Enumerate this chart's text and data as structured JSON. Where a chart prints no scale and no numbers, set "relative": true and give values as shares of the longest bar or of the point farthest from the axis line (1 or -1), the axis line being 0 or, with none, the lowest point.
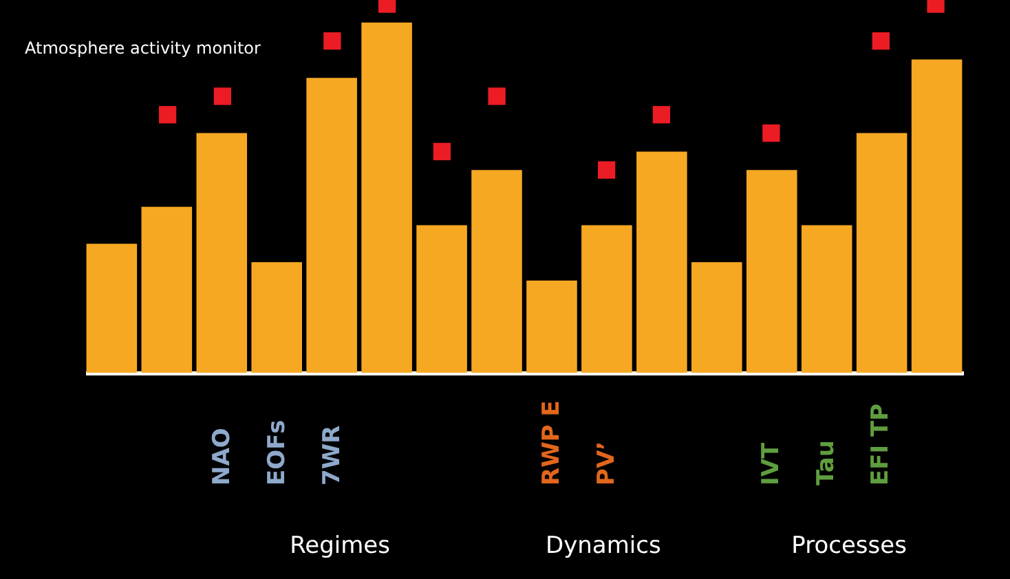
{
  "chart_data": {
    "type": "bar",
    "relative": true,
    "title": "Atmosphere activity monitor",
    "categories": [
      null,
      null,
      "NAO",
      "EOFs",
      "7WR",
      null,
      null,
      null,
      "RWP E",
      "PV’",
      null,
      null,
      "IVT",
      "Tau",
      "EFI TP",
      null
    ],
    "series": [
      {
        "color": "#f7a823",
        "values": [
          0.35,
          0.45,
          0.65,
          0.3,
          0.8,
          0.95,
          0.4,
          0.55,
          0.25,
          0.4,
          0.6,
          0.3,
          0.55,
          0.4,
          0.65,
          0.85
        ]
      },
      {
        "type": "scatter",
        "marker": "square",
        "color": "#ec1c24",
        "values": [
          null,
          0.7,
          0.75,
          null,
          0.9,
          1,
          0.6,
          0.75,
          null,
          0.55,
          0.7,
          null,
          0.65,
          null,
          0.9,
          1
        ]
      }
    ],
    "annotations": [
      "Regimes",
      "Dynamics",
      "Processes"
    ]
  }
}
